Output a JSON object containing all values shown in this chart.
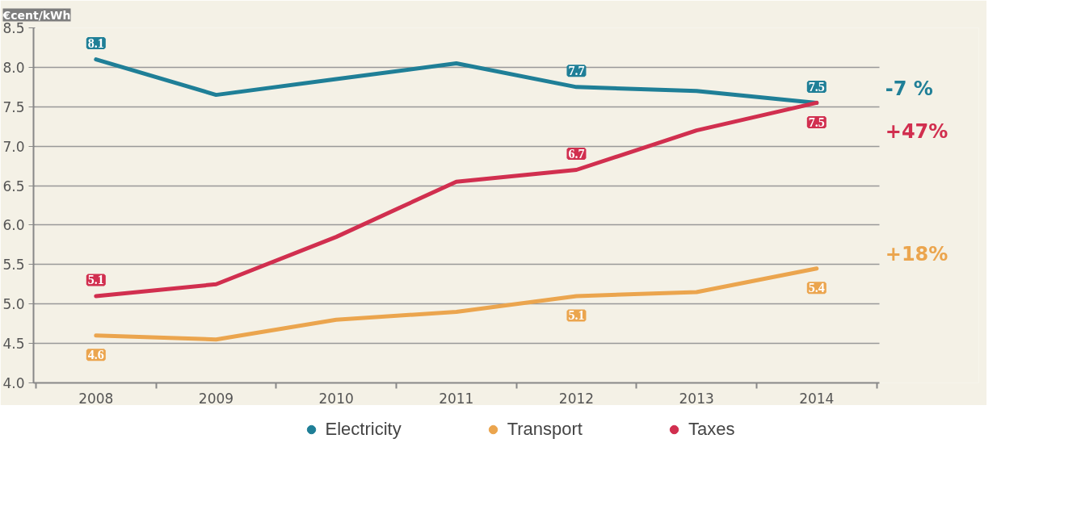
{
  "chart_data": {
    "type": "line",
    "ylabel": "€cent/kWh",
    "categories": [
      "2008",
      "2009",
      "2010",
      "2011",
      "2012",
      "2013",
      "2014"
    ],
    "series": [
      {
        "name": "Electricity",
        "color": "#1f7f97",
        "values": [
          8.1,
          7.65,
          7.85,
          8.05,
          7.75,
          7.7,
          7.55
        ],
        "value_labels": [
          "8.1",
          null,
          null,
          null,
          "7.7",
          null,
          "7.5"
        ]
      },
      {
        "name": "Transport",
        "color": "#eba54e",
        "values": [
          4.6,
          4.55,
          4.8,
          4.9,
          5.1,
          5.15,
          5.45
        ],
        "value_labels": [
          "4.6",
          null,
          null,
          null,
          "5.1",
          null,
          "5.4"
        ]
      },
      {
        "name": "Taxes",
        "color": "#d12f4f",
        "values": [
          5.1,
          5.25,
          5.85,
          6.55,
          6.7,
          7.2,
          7.55
        ],
        "value_labels": [
          "5.1",
          null,
          null,
          null,
          "6.7",
          null,
          "7.5"
        ]
      }
    ],
    "annotations": [
      "-7 %",
      "+18%",
      "+47%"
    ],
    "ylim": [
      4.0,
      8.5
    ],
    "yticks": [
      {
        "value": 4.0,
        "label": "4.0"
      },
      {
        "value": 4.5,
        "label": "4.5"
      },
      {
        "value": 5.0,
        "label": "5.0"
      },
      {
        "value": 5.5,
        "label": "5.5"
      },
      {
        "value": 6.0,
        "label": "6.0"
      },
      {
        "value": 6.5,
        "label": "6.5"
      },
      {
        "value": 7.0,
        "label": "7.0"
      },
      {
        "value": 7.5,
        "label": "7.5"
      },
      {
        "value": 8.0,
        "label": "8.0"
      },
      {
        "value": 8.5,
        "label": "8.5"
      }
    ],
    "grid": "y",
    "legend": "bottom",
    "marker": "none",
    "line_style": "solid"
  }
}
